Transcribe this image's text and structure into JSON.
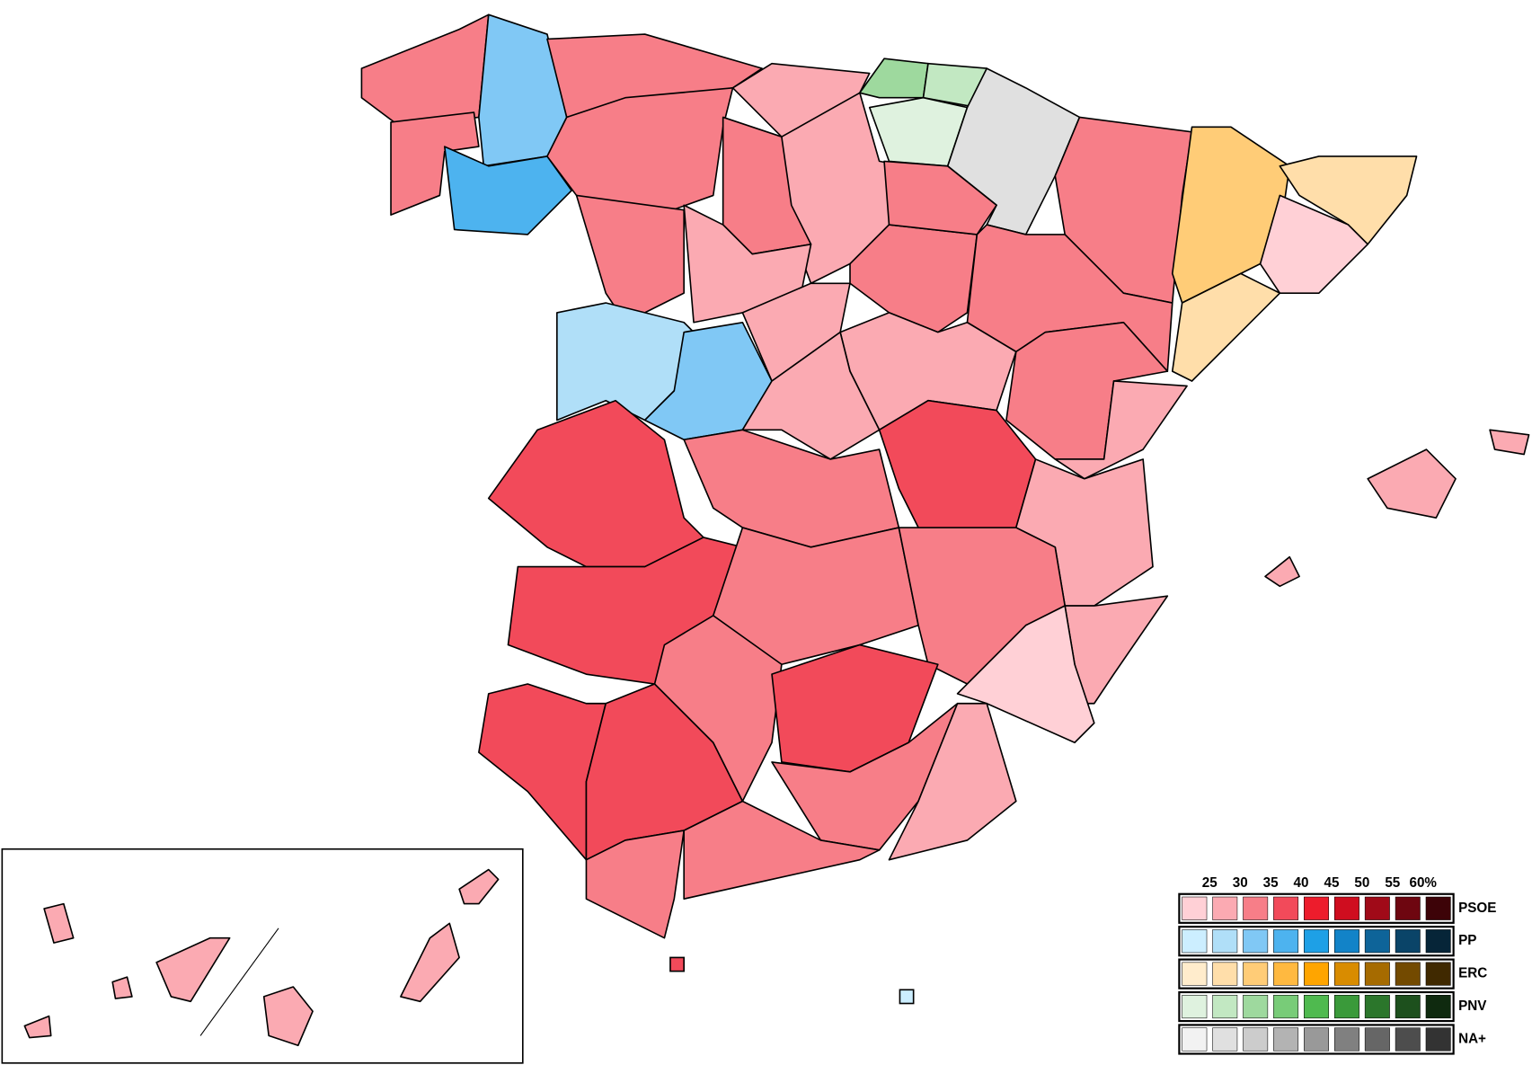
{
  "legend": {
    "thresholds": [
      "25",
      "30",
      "35",
      "40",
      "45",
      "50",
      "55",
      "60%"
    ],
    "parties": [
      {
        "name": "PSOE",
        "colors": [
          "#ffd0d6",
          "#fbaab2",
          "#f77e88",
          "#f24a5a",
          "#ed1c2c",
          "#cf0d1f",
          "#a00a18",
          "#6e0610",
          "#3d0308"
        ]
      },
      {
        "name": "PP",
        "colors": [
          "#cceeff",
          "#b0dff8",
          "#80c8f5",
          "#4db3ef",
          "#1ea0e6",
          "#1283c8",
          "#0e6499",
          "#0a4468",
          "#062538"
        ]
      },
      {
        "name": "ERC",
        "colors": [
          "#ffeccc",
          "#ffdeaa",
          "#ffcc77",
          "#ffb940",
          "#ffa500",
          "#d98c00",
          "#a66b00",
          "#734a00",
          "#402900"
        ]
      },
      {
        "name": "PNV",
        "colors": [
          "#dff2df",
          "#c2e8c2",
          "#9ed99e",
          "#78cc78",
          "#4fba4f",
          "#3a9a3a",
          "#2b762b",
          "#1d501d",
          "#0f2a0f"
        ]
      },
      {
        "name": "NA+",
        "colors": [
          "#f2f2f2",
          "#e0e0e0",
          "#cccccc",
          "#b3b3b3",
          "#999999",
          "#808080",
          "#666666",
          "#4d4d4d",
          "#333333"
        ]
      }
    ]
  }
}
